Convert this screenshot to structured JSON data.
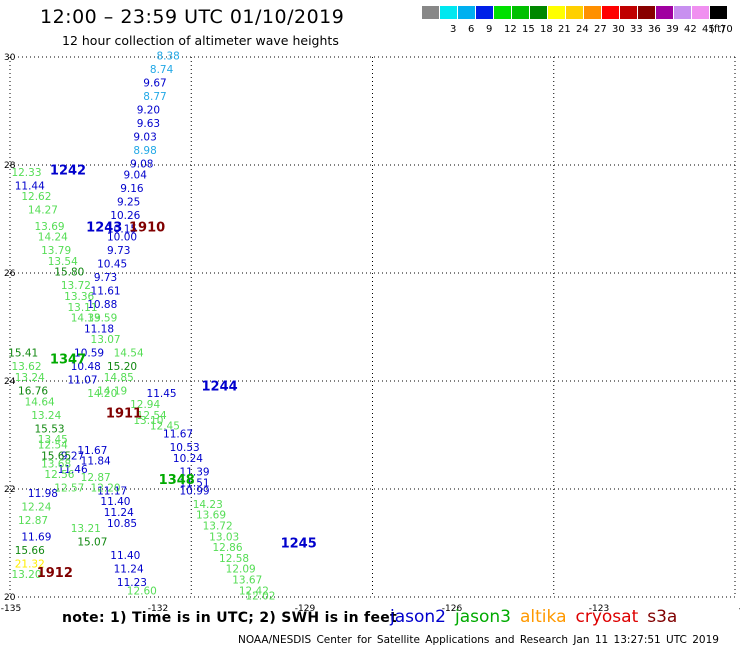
{
  "header": {
    "title": "12:00 – 23:59 UTC 01/10/2019",
    "subtitle": "12 hour collection of altimeter wave heights"
  },
  "color_scale": {
    "unit": "(ft)",
    "bins": [
      {
        "label": "",
        "color": "#888888"
      },
      {
        "label": "3",
        "color": "#00e8f0"
      },
      {
        "label": "6",
        "color": "#00b0f0"
      },
      {
        "label": "9",
        "color": "#0020e8"
      },
      {
        "label": "12",
        "color": "#00e000"
      },
      {
        "label": "15",
        "color": "#00c000"
      },
      {
        "label": "18",
        "color": "#008800"
      },
      {
        "label": "21",
        "color": "#ffff00"
      },
      {
        "label": "24",
        "color": "#ffd000"
      },
      {
        "label": "27",
        "color": "#ff9000"
      },
      {
        "label": "30",
        "color": "#ff0000"
      },
      {
        "label": "33",
        "color": "#c00000"
      },
      {
        "label": "36",
        "color": "#880000"
      },
      {
        "label": "39",
        "color": "#a000a0"
      },
      {
        "label": "42",
        "color": "#c890f0"
      },
      {
        "label": "45",
        "color": "#f090f0"
      },
      {
        "label": "70",
        "color": "#000000"
      }
    ]
  },
  "chart_data": {
    "type": "scatter",
    "xlim": [
      -135,
      -124
    ],
    "ylim": [
      20,
      30
    ],
    "x_ticks": [
      "-135",
      "-132",
      "-129",
      "-126",
      "-123",
      "-12"
    ],
    "y_ticks": [
      "30",
      "28",
      "26",
      "24",
      "22",
      "20"
    ],
    "grid": true,
    "series": [
      {
        "name": "jason2",
        "color": "#0000cc",
        "pass_labels": [
          {
            "text": "1242",
            "lon": -134.12,
            "lat": 27.82
          },
          {
            "text": "1243",
            "lon": -133.57,
            "lat": 26.77
          },
          {
            "text": "1244",
            "lon": -131.82,
            "lat": 23.82
          },
          {
            "text": "1245",
            "lon": -130.62,
            "lat": 20.92
          }
        ]
      },
      {
        "name": "jason3",
        "color": "#00aa00",
        "pass_labels": [
          {
            "text": "1347",
            "lon": -134.12,
            "lat": 24.32
          },
          {
            "text": "1348",
            "lon": -132.47,
            "lat": 22.09
          }
        ]
      },
      {
        "name": "altika",
        "color": "#ff9900",
        "pass_labels": []
      },
      {
        "name": "cryosat",
        "color": "#dd0000",
        "pass_labels": []
      },
      {
        "name": "s3a",
        "color": "#800000",
        "pass_labels": [
          {
            "text": "1910",
            "lon": -132.92,
            "lat": 26.77
          },
          {
            "text": "1911",
            "lon": -133.27,
            "lat": 23.32
          },
          {
            "text": "1912",
            "lon": -134.32,
            "lat": 20.37
          }
        ]
      }
    ],
    "observations": [
      {
        "v": "8.38",
        "lon": -132.6,
        "lat": 29.95
      },
      {
        "v": "8.74",
        "lon": -132.7,
        "lat": 29.7
      },
      {
        "v": "9.67",
        "lon": -132.8,
        "lat": 29.45
      },
      {
        "v": "8.77",
        "lon": -132.8,
        "lat": 29.2
      },
      {
        "v": "9.20",
        "lon": -132.9,
        "lat": 28.95
      },
      {
        "v": "9.63",
        "lon": -132.9,
        "lat": 28.7
      },
      {
        "v": "9.03",
        "lon": -132.95,
        "lat": 28.45
      },
      {
        "v": "8.98",
        "lon": -132.95,
        "lat": 28.2
      },
      {
        "v": "9.08",
        "lon": -133.0,
        "lat": 27.95
      },
      {
        "v": "9.04",
        "lon": -133.1,
        "lat": 27.75
      },
      {
        "v": "9.16",
        "lon": -133.15,
        "lat": 27.5
      },
      {
        "v": "9.25",
        "lon": -133.2,
        "lat": 27.25
      },
      {
        "v": "10.26",
        "lon": -133.25,
        "lat": 27.0
      },
      {
        "v": "10.15",
        "lon": -133.3,
        "lat": 26.75
      },
      {
        "v": "10.00",
        "lon": -133.3,
        "lat": 26.6
      },
      {
        "v": "9.73",
        "lon": -133.35,
        "lat": 26.35
      },
      {
        "v": "10.45",
        "lon": -133.45,
        "lat": 26.1
      },
      {
        "v": "9.73",
        "lon": -133.55,
        "lat": 25.85
      },
      {
        "v": "11.61",
        "lon": -133.55,
        "lat": 25.6
      },
      {
        "v": "10.88",
        "lon": -133.6,
        "lat": 25.35
      },
      {
        "v": "11.18",
        "lon": -133.65,
        "lat": 24.9
      },
      {
        "v": "10.59",
        "lon": -133.8,
        "lat": 24.45
      },
      {
        "v": "10.48",
        "lon": -133.85,
        "lat": 24.2
      },
      {
        "v": "11.07",
        "lon": -133.9,
        "lat": 23.95
      },
      {
        "v": "11.45",
        "lon": -132.7,
        "lat": 23.7
      },
      {
        "v": "11.67",
        "lon": -132.45,
        "lat": 22.95
      },
      {
        "v": "10.53",
        "lon": -132.35,
        "lat": 22.7
      },
      {
        "v": "10.24",
        "lon": -132.3,
        "lat": 22.5
      },
      {
        "v": "11.39",
        "lon": -132.2,
        "lat": 22.25
      },
      {
        "v": "11.51",
        "lon": -132.2,
        "lat": 22.05
      },
      {
        "v": "10.99",
        "lon": -132.2,
        "lat": 21.9
      },
      {
        "v": "11.67",
        "lon": -133.75,
        "lat": 22.65
      },
      {
        "v": "9.27",
        "lon": -134.05,
        "lat": 22.55
      },
      {
        "v": "11.84",
        "lon": -133.7,
        "lat": 22.45
      },
      {
        "v": "11.46",
        "lon": -134.05,
        "lat": 22.3
      },
      {
        "v": "11.98",
        "lon": -134.5,
        "lat": 21.85
      },
      {
        "v": "11.17",
        "lon": -133.45,
        "lat": 21.9
      },
      {
        "v": "11.40",
        "lon": -133.4,
        "lat": 21.7
      },
      {
        "v": "11.24",
        "lon": -133.35,
        "lat": 21.5
      },
      {
        "v": "10.85",
        "lon": -133.3,
        "lat": 21.3
      },
      {
        "v": "11.69",
        "lon": -134.6,
        "lat": 21.05
      },
      {
        "v": "11.40",
        "lon": -133.25,
        "lat": 20.7
      },
      {
        "v": "11.24",
        "lon": -133.2,
        "lat": 20.45
      },
      {
        "v": "11.23",
        "lon": -133.15,
        "lat": 20.2
      },
      {
        "v": "11.44",
        "lon": -134.7,
        "lat": 27.55
      },
      {
        "v": "12.33",
        "lon": -134.75,
        "lat": 27.8
      },
      {
        "v": "12.62",
        "lon": -134.6,
        "lat": 27.35
      },
      {
        "v": "14.27",
        "lon": -134.5,
        "lat": 27.1
      },
      {
        "v": "13.69",
        "lon": -134.4,
        "lat": 26.8
      },
      {
        "v": "14.24",
        "lon": -134.35,
        "lat": 26.6
      },
      {
        "v": "13.79",
        "lon": -134.3,
        "lat": 26.35
      },
      {
        "v": "13.54",
        "lon": -134.2,
        "lat": 26.15
      },
      {
        "v": "15.80",
        "lon": -134.1,
        "lat": 25.95
      },
      {
        "v": "13.72",
        "lon": -134.0,
        "lat": 25.7
      },
      {
        "v": "13.36",
        "lon": -133.95,
        "lat": 25.5
      },
      {
        "v": "13.11",
        "lon": -133.9,
        "lat": 25.3
      },
      {
        "v": "14.39",
        "lon": -133.85,
        "lat": 25.1
      },
      {
        "v": "13.59",
        "lon": -133.6,
        "lat": 25.1
      },
      {
        "v": "13.07",
        "lon": -133.55,
        "lat": 24.7
      },
      {
        "v": "15.41",
        "lon": -134.8,
        "lat": 24.45
      },
      {
        "v": "13.62",
        "lon": -134.75,
        "lat": 24.2
      },
      {
        "v": "13.24",
        "lon": -134.7,
        "lat": 24.0
      },
      {
        "v": "16.76",
        "lon": -134.65,
        "lat": 23.75
      },
      {
        "v": "14.64",
        "lon": -134.55,
        "lat": 23.55
      },
      {
        "v": "13.24",
        "lon": -134.45,
        "lat": 23.3
      },
      {
        "v": "15.53",
        "lon": -134.4,
        "lat": 23.05
      },
      {
        "v": "13.45",
        "lon": -134.35,
        "lat": 22.85
      },
      {
        "v": "12.54",
        "lon": -134.35,
        "lat": 22.75
      },
      {
        "v": "15.65",
        "lon": -134.3,
        "lat": 22.55
      },
      {
        "v": "13.68",
        "lon": -134.3,
        "lat": 22.4
      },
      {
        "v": "12.56",
        "lon": -134.25,
        "lat": 22.2
      },
      {
        "v": "12.57",
        "lon": -134.1,
        "lat": 21.95
      },
      {
        "v": "12.20",
        "lon": -133.55,
        "lat": 21.95
      },
      {
        "v": "12.87",
        "lon": -133.7,
        "lat": 22.15
      },
      {
        "v": "14.54",
        "lon": -133.2,
        "lat": 24.45
      },
      {
        "v": "15.20",
        "lon": -133.3,
        "lat": 24.2
      },
      {
        "v": "14.85",
        "lon": -133.35,
        "lat": 24.0
      },
      {
        "v": "14.19",
        "lon": -133.45,
        "lat": 23.75
      },
      {
        "v": "14.20",
        "lon": -133.6,
        "lat": 23.7
      },
      {
        "v": "12.94",
        "lon": -132.95,
        "lat": 23.5
      },
      {
        "v": "12.54",
        "lon": -132.85,
        "lat": 23.3
      },
      {
        "v": "12.45",
        "lon": -132.65,
        "lat": 23.1
      },
      {
        "v": "13.10",
        "lon": -132.9,
        "lat": 23.2
      },
      {
        "v": "14.23",
        "lon": -132.0,
        "lat": 21.65
      },
      {
        "v": "13.69",
        "lon": -131.95,
        "lat": 21.45
      },
      {
        "v": "13.72",
        "lon": -131.85,
        "lat": 21.25
      },
      {
        "v": "13.03",
        "lon": -131.75,
        "lat": 21.05
      },
      {
        "v": "12.86",
        "lon": -131.7,
        "lat": 20.85
      },
      {
        "v": "12.58",
        "lon": -131.6,
        "lat": 20.65
      },
      {
        "v": "12.09",
        "lon": -131.5,
        "lat": 20.45
      },
      {
        "v": "13.67",
        "lon": -131.4,
        "lat": 20.25
      },
      {
        "v": "12.42",
        "lon": -131.3,
        "lat": 20.05
      },
      {
        "v": "12.02",
        "lon": -131.2,
        "lat": 19.95
      },
      {
        "v": "12.24",
        "lon": -134.6,
        "lat": 21.6
      },
      {
        "v": "12.87",
        "lon": -134.65,
        "lat": 21.35
      },
      {
        "v": "15.66",
        "lon": -134.7,
        "lat": 20.8
      },
      {
        "v": "13.21",
        "lon": -133.85,
        "lat": 21.2
      },
      {
        "v": "15.07",
        "lon": -133.75,
        "lat": 20.95
      },
      {
        "v": "13.20",
        "lon": -134.75,
        "lat": 20.35
      },
      {
        "v": "12.60",
        "lon": -133.0,
        "lat": 20.05
      },
      {
        "v": "21.32",
        "lon": -134.7,
        "lat": 20.55
      }
    ]
  },
  "footnote": {
    "note": "note: 1) Time is in UTC; 2) SWH is in feet",
    "source": "NOAA/NESDIS Center for Satellite Applications and Research   Jan 11 13:27:51 UTC 2019"
  },
  "legend": [
    {
      "label": "jason2",
      "color": "#0000cc"
    },
    {
      "label": "jason3",
      "color": "#00aa00"
    },
    {
      "label": "altika",
      "color": "#ff9900"
    },
    {
      "label": "cryosat",
      "color": "#dd0000"
    },
    {
      "label": "s3a",
      "color": "#800000"
    }
  ]
}
